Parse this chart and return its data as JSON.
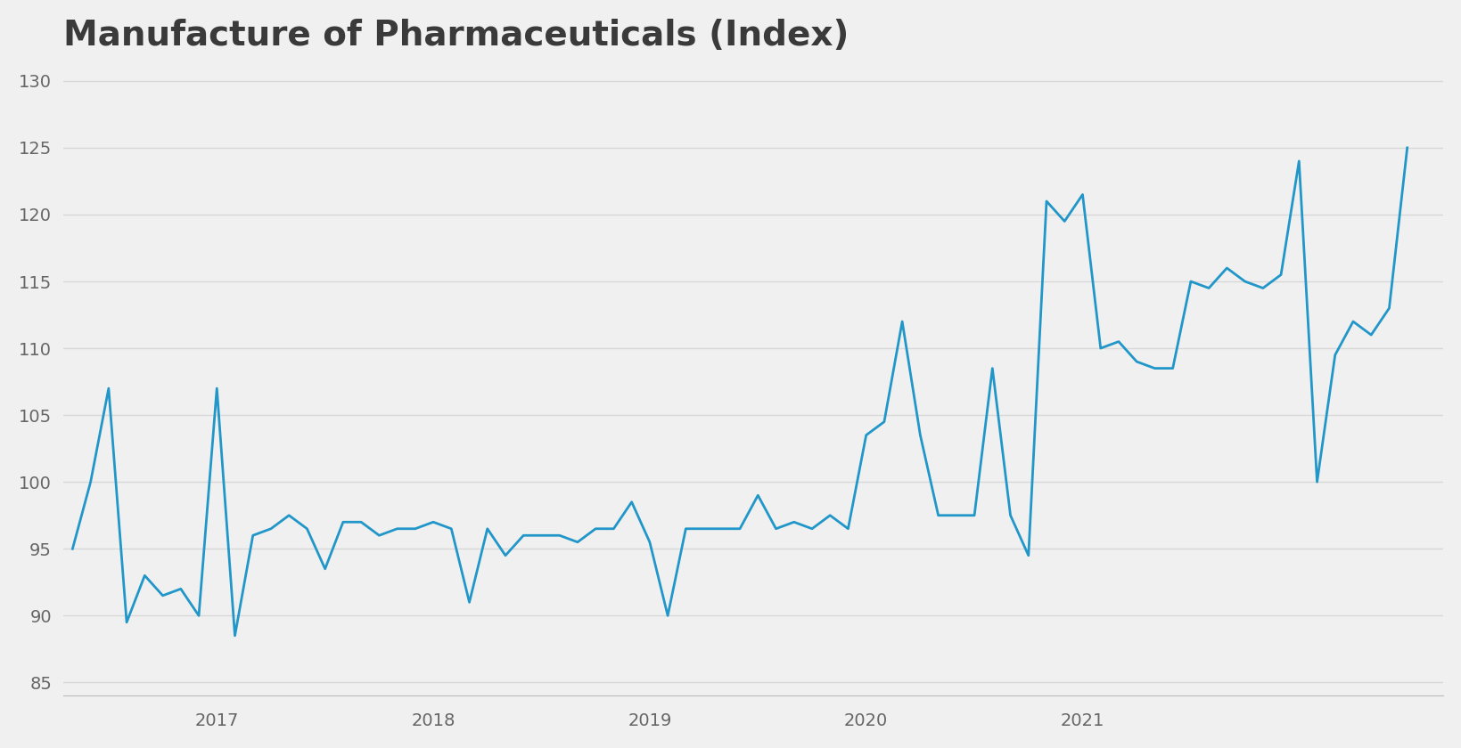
{
  "title": "Manufacture of Pharmaceuticals (Index)",
  "title_fontsize": 28,
  "title_fontweight": "bold",
  "title_color": "#3a3a3a",
  "line_color": "#2196c8",
  "line_width": 2.0,
  "background_color": "#F0F0F0",
  "grid_color": "#D8D8D8",
  "tick_label_color": "#666666",
  "tick_fontsize": 14,
  "ylim": [
    84,
    131
  ],
  "yticks": [
    85,
    90,
    95,
    100,
    105,
    110,
    115,
    120,
    125,
    130
  ],
  "x_labels": [
    "2017",
    "2018",
    "2019",
    "2020",
    "2021"
  ],
  "values": [
    95.0,
    100.0,
    107.0,
    89.5,
    93.0,
    91.5,
    92.0,
    90.0,
    107.0,
    88.5,
    96.0,
    96.5,
    97.5,
    96.5,
    93.5,
    97.0,
    97.0,
    96.0,
    96.5,
    96.5,
    97.0,
    96.5,
    91.0,
    96.5,
    94.5,
    96.0,
    96.0,
    96.0,
    95.5,
    96.5,
    96.5,
    98.5,
    95.5,
    90.0,
    96.5,
    96.5,
    96.5,
    96.5,
    99.0,
    96.5,
    97.0,
    96.5,
    97.5,
    96.5,
    103.5,
    104.5,
    112.0,
    103.5,
    97.5,
    97.5,
    97.5,
    108.5,
    97.5,
    94.5,
    121.0,
    119.5,
    121.5,
    110.0,
    110.5,
    109.0,
    108.5,
    108.5,
    115.0,
    114.5,
    116.0,
    115.0,
    114.5,
    115.5,
    124.0,
    100.0,
    109.5,
    112.0,
    111.0,
    113.0,
    125.0
  ],
  "year_tick_positions": [
    8,
    20,
    32,
    44,
    56
  ],
  "xlim_left": -0.5,
  "xlim_right": 76
}
